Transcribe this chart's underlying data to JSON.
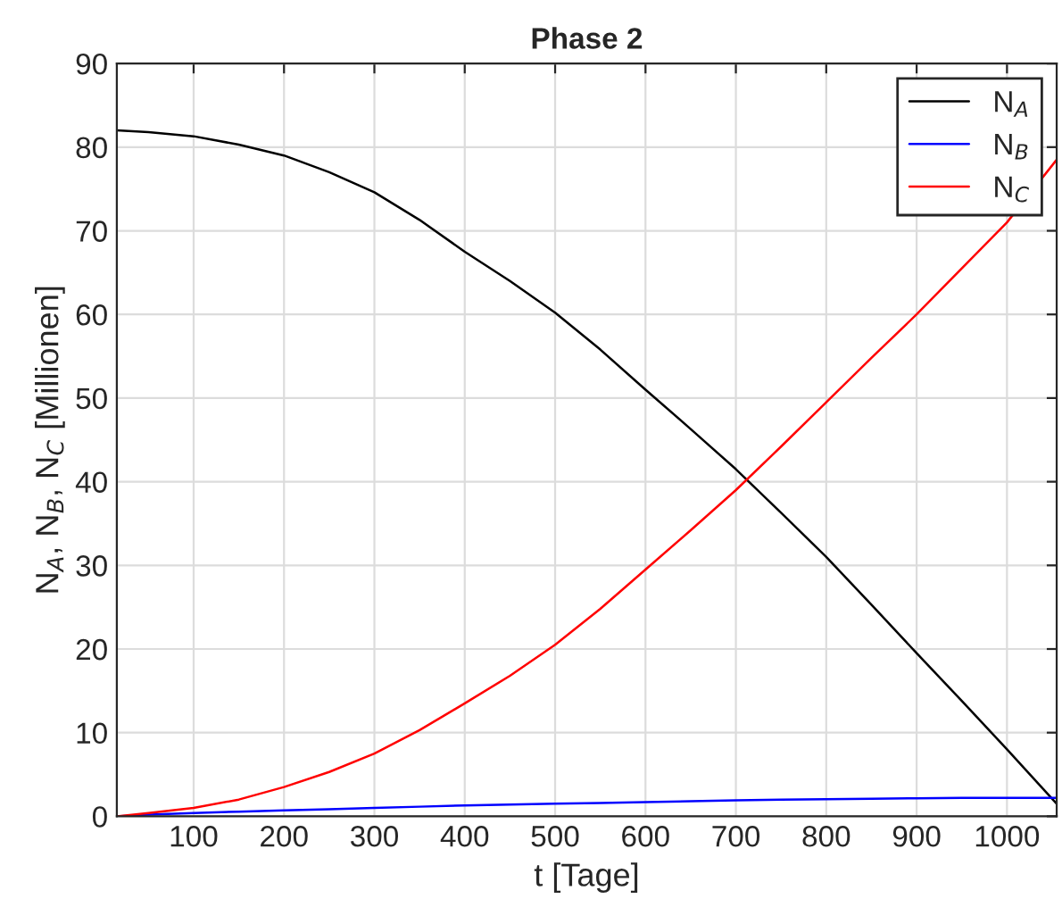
{
  "chart_data": {
    "type": "line",
    "title": "Phase 2",
    "xlabel": "t [Tage]",
    "ylabel": "N$_{A}$, N$_{B}$, N$_{C}$ [Millionen]",
    "x": [
      15,
      50,
      100,
      150,
      200,
      250,
      300,
      350,
      400,
      450,
      500,
      550,
      600,
      650,
      700,
      750,
      800,
      850,
      900,
      950,
      1000,
      1055
    ],
    "series": [
      {
        "name": "N$_{A}$",
        "color": "#000000",
        "values": [
          82,
          81.8,
          81.3,
          80.3,
          79,
          77,
          74.6,
          71.3,
          67.5,
          64,
          60.2,
          55.8,
          51,
          46.3,
          41.5,
          36.3,
          31,
          25.3,
          19.5,
          13.8,
          8,
          1.5
        ]
      },
      {
        "name": "N$_{B}$",
        "color": "#0000ff",
        "values": [
          0,
          0.2,
          0.4,
          0.55,
          0.7,
          0.85,
          1.0,
          1.15,
          1.3,
          1.4,
          1.5,
          1.6,
          1.7,
          1.8,
          1.9,
          2.0,
          2.05,
          2.1,
          2.15,
          2.2,
          2.2,
          2.2
        ]
      },
      {
        "name": "N$_{C}$",
        "color": "#ff0000",
        "values": [
          0,
          0.4,
          1,
          2,
          3.5,
          5.3,
          7.5,
          10.3,
          13.5,
          16.8,
          20.5,
          24.8,
          29.5,
          34.2,
          39,
          44.2,
          49.5,
          54.8,
          60,
          65.5,
          71,
          78.5
        ]
      }
    ],
    "xlim": [
      15,
      1055
    ],
    "xticks": [
      100,
      200,
      300,
      400,
      500,
      600,
      700,
      800,
      900,
      1000
    ],
    "ylim": [
      0,
      90
    ],
    "yticks": [
      0,
      10,
      20,
      30,
      40,
      50,
      60,
      70,
      80,
      90
    ],
    "grid": true,
    "legend": "top right"
  }
}
